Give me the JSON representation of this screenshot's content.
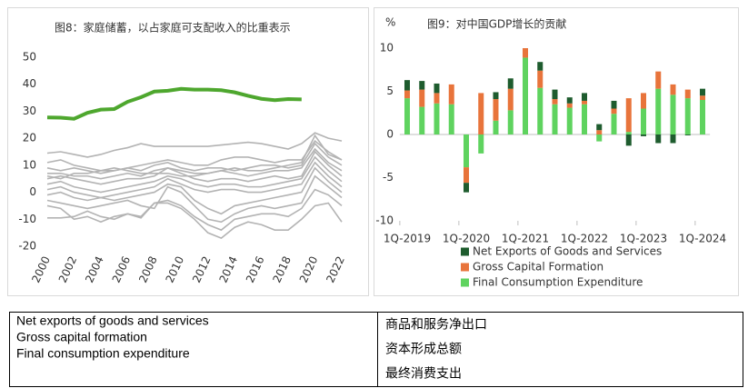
{
  "chart_data": [
    {
      "type": "line",
      "title": "图8：家庭储蓄，以占家庭可支配收入的比重表示",
      "x": [
        2000,
        2001,
        2002,
        2003,
        2004,
        2005,
        2006,
        2007,
        2008,
        2009,
        2010,
        2011,
        2012,
        2013,
        2014,
        2015,
        2016,
        2017,
        2018,
        2019,
        2020,
        2021,
        2022
      ],
      "xlim": [
        2000,
        2022
      ],
      "xticks": [
        2000,
        2002,
        2004,
        2006,
        2008,
        2010,
        2012,
        2014,
        2016,
        2018,
        2020,
        2022
      ],
      "ylim": [
        -20,
        50
      ],
      "yticks": [
        50,
        40,
        30,
        20,
        10,
        0,
        -10,
        -20
      ],
      "series": [
        {
          "color": "#b3b3b3",
          "values": [
            14.5,
            15,
            14,
            13,
            14,
            15.5,
            16.5,
            18,
            17,
            17,
            17,
            17,
            17,
            17.5,
            18,
            18.5,
            18,
            17,
            16,
            18,
            22,
            20,
            19
          ]
        },
        {
          "color": "#b3b3b3",
          "values": [
            11,
            12,
            10,
            9,
            8,
            8,
            9,
            10,
            11,
            12,
            11,
            10,
            10,
            12,
            13,
            13,
            12,
            11,
            12,
            12,
            19,
            15,
            12
          ]
        },
        {
          "color": "#b3b3b3",
          "values": [
            9,
            8,
            9,
            8,
            7,
            8,
            9,
            8,
            10,
            11,
            9,
            8,
            9,
            9,
            8,
            9,
            10,
            10,
            9,
            10,
            18,
            13,
            10
          ]
        },
        {
          "color": "#b3b3b3",
          "values": [
            7,
            7,
            6,
            6,
            5,
            6,
            7,
            6,
            8,
            9,
            8,
            7,
            7,
            8,
            7,
            6,
            7,
            8,
            8,
            9,
            16,
            11,
            8
          ]
        },
        {
          "color": "#b3b3b3",
          "values": [
            5,
            6,
            5,
            4,
            3,
            4,
            5,
            5,
            6,
            9,
            7,
            5,
            4,
            5,
            5,
            4,
            5,
            6,
            5,
            6,
            15,
            10,
            6
          ]
        },
        {
          "color": "#b3b3b3",
          "values": [
            3,
            4,
            2,
            1,
            0,
            1,
            2,
            3,
            4,
            6,
            5,
            3,
            2,
            3,
            3,
            2,
            2,
            3,
            4,
            5,
            13,
            8,
            4
          ]
        },
        {
          "color": "#b3b3b3",
          "values": [
            1,
            2,
            0,
            -1,
            -2,
            -1,
            0,
            1,
            2,
            5,
            3,
            1,
            0,
            1,
            1,
            0,
            0,
            1,
            2,
            3,
            11,
            6,
            2
          ]
        },
        {
          "color": "#b3b3b3",
          "values": [
            -1,
            0,
            -2,
            -3,
            -2,
            -3,
            -2,
            -1,
            0,
            3,
            2,
            -3,
            -6,
            -8,
            -5,
            -4,
            -3,
            -2,
            -1,
            0,
            9,
            4,
            0
          ]
        },
        {
          "color": "#b3b3b3",
          "values": [
            -3,
            -4,
            -5,
            -6,
            -5,
            -4,
            -3,
            -5,
            -6,
            2,
            0,
            -5,
            -10,
            -11,
            -8,
            -6,
            -5,
            -6,
            -5,
            -4,
            6,
            2,
            -2
          ]
        },
        {
          "color": "#b3b3b3",
          "values": [
            -9.5,
            -9.5,
            -9,
            -7,
            -9,
            -10,
            -8,
            -9,
            -4,
            -4,
            -6,
            -10,
            -15,
            -17,
            -13,
            -11,
            -12,
            -14,
            -14,
            -10,
            -5,
            -4,
            -11
          ]
        },
        {
          "color": "#b3b3b3",
          "values": [
            -5,
            -6,
            -10,
            -9,
            -11,
            -9,
            -8,
            -9.5,
            -4,
            -3,
            -5,
            -9,
            -12,
            -14,
            -10,
            -9,
            -8,
            -8,
            -9,
            -6,
            1,
            -1,
            -5
          ]
        },
        {
          "color": "#b3b3b3",
          "values": [
            6,
            5,
            7,
            7,
            8,
            9,
            8,
            7,
            7,
            7,
            6,
            6,
            7,
            8,
            9,
            8,
            8,
            9,
            10,
            11,
            21,
            14,
            12
          ]
        },
        {
          "color": "#4ea72e",
          "values": [
            27.7,
            27.6,
            27.2,
            29.4,
            30.6,
            30.8,
            33.5,
            35.2,
            37.3,
            37.6,
            38.3,
            38.0,
            38.0,
            37.8,
            37.0,
            35.7,
            34.6,
            34.1,
            34.5,
            34.4,
            null,
            null,
            null
          ]
        }
      ]
    },
    {
      "type": "stacked-bar",
      "title": "图9：对中国GDP增长的贡献",
      "unit": "%",
      "categories": [
        "1Q-2019",
        null,
        null,
        null,
        "1Q-2020",
        null,
        null,
        null,
        "1Q-2021",
        null,
        null,
        null,
        "1Q-2022",
        null,
        null,
        null,
        "1Q-2023",
        null,
        null,
        null,
        "1Q-2024"
      ],
      "ylim": [
        -10,
        10
      ],
      "yticks": [
        10,
        5,
        0,
        -5,
        -10
      ],
      "series": [
        {
          "name": "Net Exports of Goods and Services",
          "color": "#1e5c2e",
          "values": [
            1.2,
            1.0,
            1.1,
            0,
            -1.1,
            0,
            0.8,
            1.2,
            0,
            1.0,
            1.1,
            0.7,
            0.9,
            0.7,
            0.9,
            -1.3,
            -0.2,
            -1.0,
            -1.0,
            -0.1,
            0.8
          ]
        },
        {
          "name": "Gross Capital Formation",
          "color": "#e8743b",
          "values": [
            0.9,
            2.0,
            1.2,
            2.3,
            -1.8,
            4.8,
            2.5,
            2.5,
            1.1,
            2.0,
            0.6,
            0.5,
            0.4,
            0.5,
            0.6,
            3.9,
            1.8,
            2.0,
            1.2,
            1.0,
            0.5
          ]
        },
        {
          "name": "Final Consumption Expenditure",
          "color": "#5fd35f",
          "values": [
            4.2,
            3.2,
            3.6,
            3.5,
            -3.8,
            -2.2,
            1.6,
            2.8,
            8.9,
            5.4,
            3.5,
            3.1,
            3.5,
            -0.8,
            2.4,
            0.3,
            3.0,
            5.3,
            4.6,
            4.2,
            4.0
          ]
        }
      ]
    }
  ],
  "table": {
    "left": [
      "Net exports of goods and services",
      "Gross capital formation",
      "Final consumption expenditure"
    ],
    "right": [
      "商品和服务净出口",
      "资本形成总额",
      "最终消费支出"
    ]
  }
}
